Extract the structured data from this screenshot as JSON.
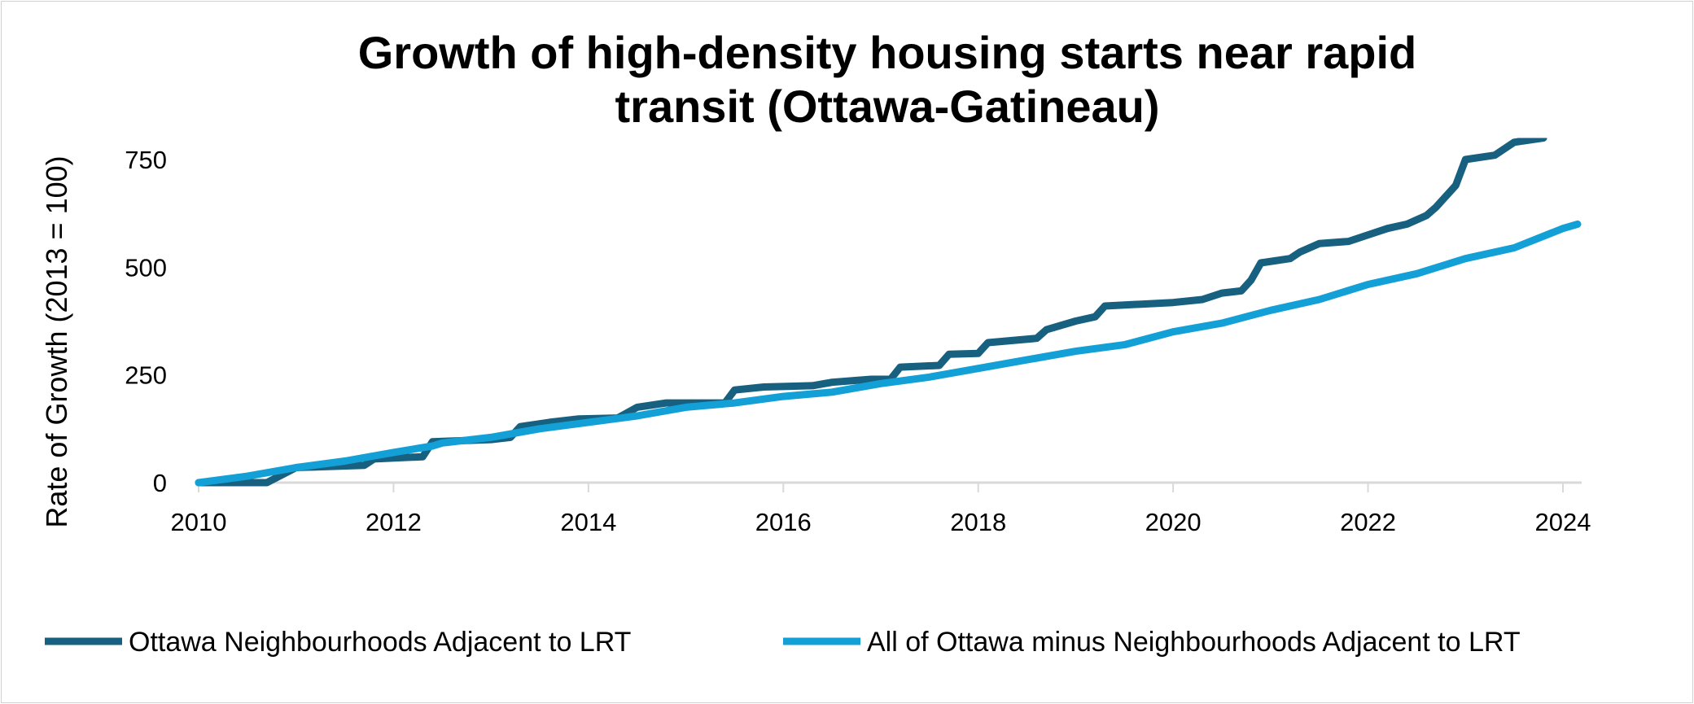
{
  "chart_data": {
    "type": "line",
    "title": [
      "Growth of high-density housing starts near rapid",
      "transit (Ottawa-Gatineau)"
    ],
    "xlabel": "",
    "ylabel": "Rate of Growth (2013 = 100)",
    "xlim": [
      2010,
      2024.2
    ],
    "ylim": [
      0,
      800
    ],
    "xticks": [
      "2010",
      "2012",
      "2014",
      "2016",
      "2018",
      "2020",
      "2022",
      "2024"
    ],
    "yticks": [
      "0",
      "250",
      "500",
      "750"
    ],
    "grid": false,
    "legend": "bottom",
    "series": [
      {
        "name": "Ottawa Neighbourhoods Adjacent to LRT",
        "color": "#17607f",
        "x": [
          2010.0,
          2010.7,
          2011.0,
          2011.7,
          2011.8,
          2012.3,
          2012.4,
          2013.0,
          2013.2,
          2013.3,
          2013.6,
          2013.9,
          2014.3,
          2014.5,
          2014.8,
          2015.4,
          2015.5,
          2015.8,
          2016.3,
          2016.5,
          2016.9,
          2017.1,
          2017.2,
          2017.6,
          2017.7,
          2018.0,
          2018.1,
          2018.6,
          2018.7,
          2019.0,
          2019.2,
          2019.3,
          2020.0,
          2020.3,
          2020.5,
          2020.7,
          2020.8,
          2020.9,
          2021.2,
          2021.3,
          2021.5,
          2021.8,
          2022.0,
          2022.2,
          2022.4,
          2022.6,
          2022.7,
          2022.9,
          2023.0,
          2023.3,
          2023.5,
          2023.8
        ],
        "y": [
          0,
          0,
          35,
          40,
          55,
          60,
          95,
          100,
          105,
          130,
          140,
          148,
          150,
          175,
          185,
          185,
          215,
          222,
          225,
          233,
          240,
          240,
          268,
          272,
          298,
          300,
          325,
          335,
          355,
          375,
          385,
          410,
          418,
          425,
          440,
          445,
          470,
          510,
          520,
          535,
          555,
          560,
          575,
          590,
          600,
          620,
          640,
          690,
          750,
          760,
          790,
          800
        ]
      },
      {
        "name": "All of Ottawa minus Neighbourhoods Adjacent to LRT",
        "color": "#12a0d7",
        "x": [
          2010.0,
          2010.5,
          2011.0,
          2011.5,
          2012.0,
          2012.4,
          2012.5,
          2013.0,
          2013.5,
          2014.0,
          2014.5,
          2015.0,
          2015.5,
          2016.0,
          2016.5,
          2017.0,
          2017.5,
          2018.0,
          2018.5,
          2019.0,
          2019.5,
          2020.0,
          2020.5,
          2021.0,
          2021.5,
          2022.0,
          2022.5,
          2023.0,
          2023.5,
          2024.0,
          2024.15
        ],
        "y": [
          0,
          15,
          35,
          50,
          70,
          85,
          92,
          105,
          125,
          140,
          155,
          175,
          185,
          200,
          210,
          230,
          245,
          265,
          285,
          305,
          320,
          350,
          370,
          400,
          425,
          460,
          485,
          520,
          545,
          590,
          600
        ]
      }
    ]
  }
}
